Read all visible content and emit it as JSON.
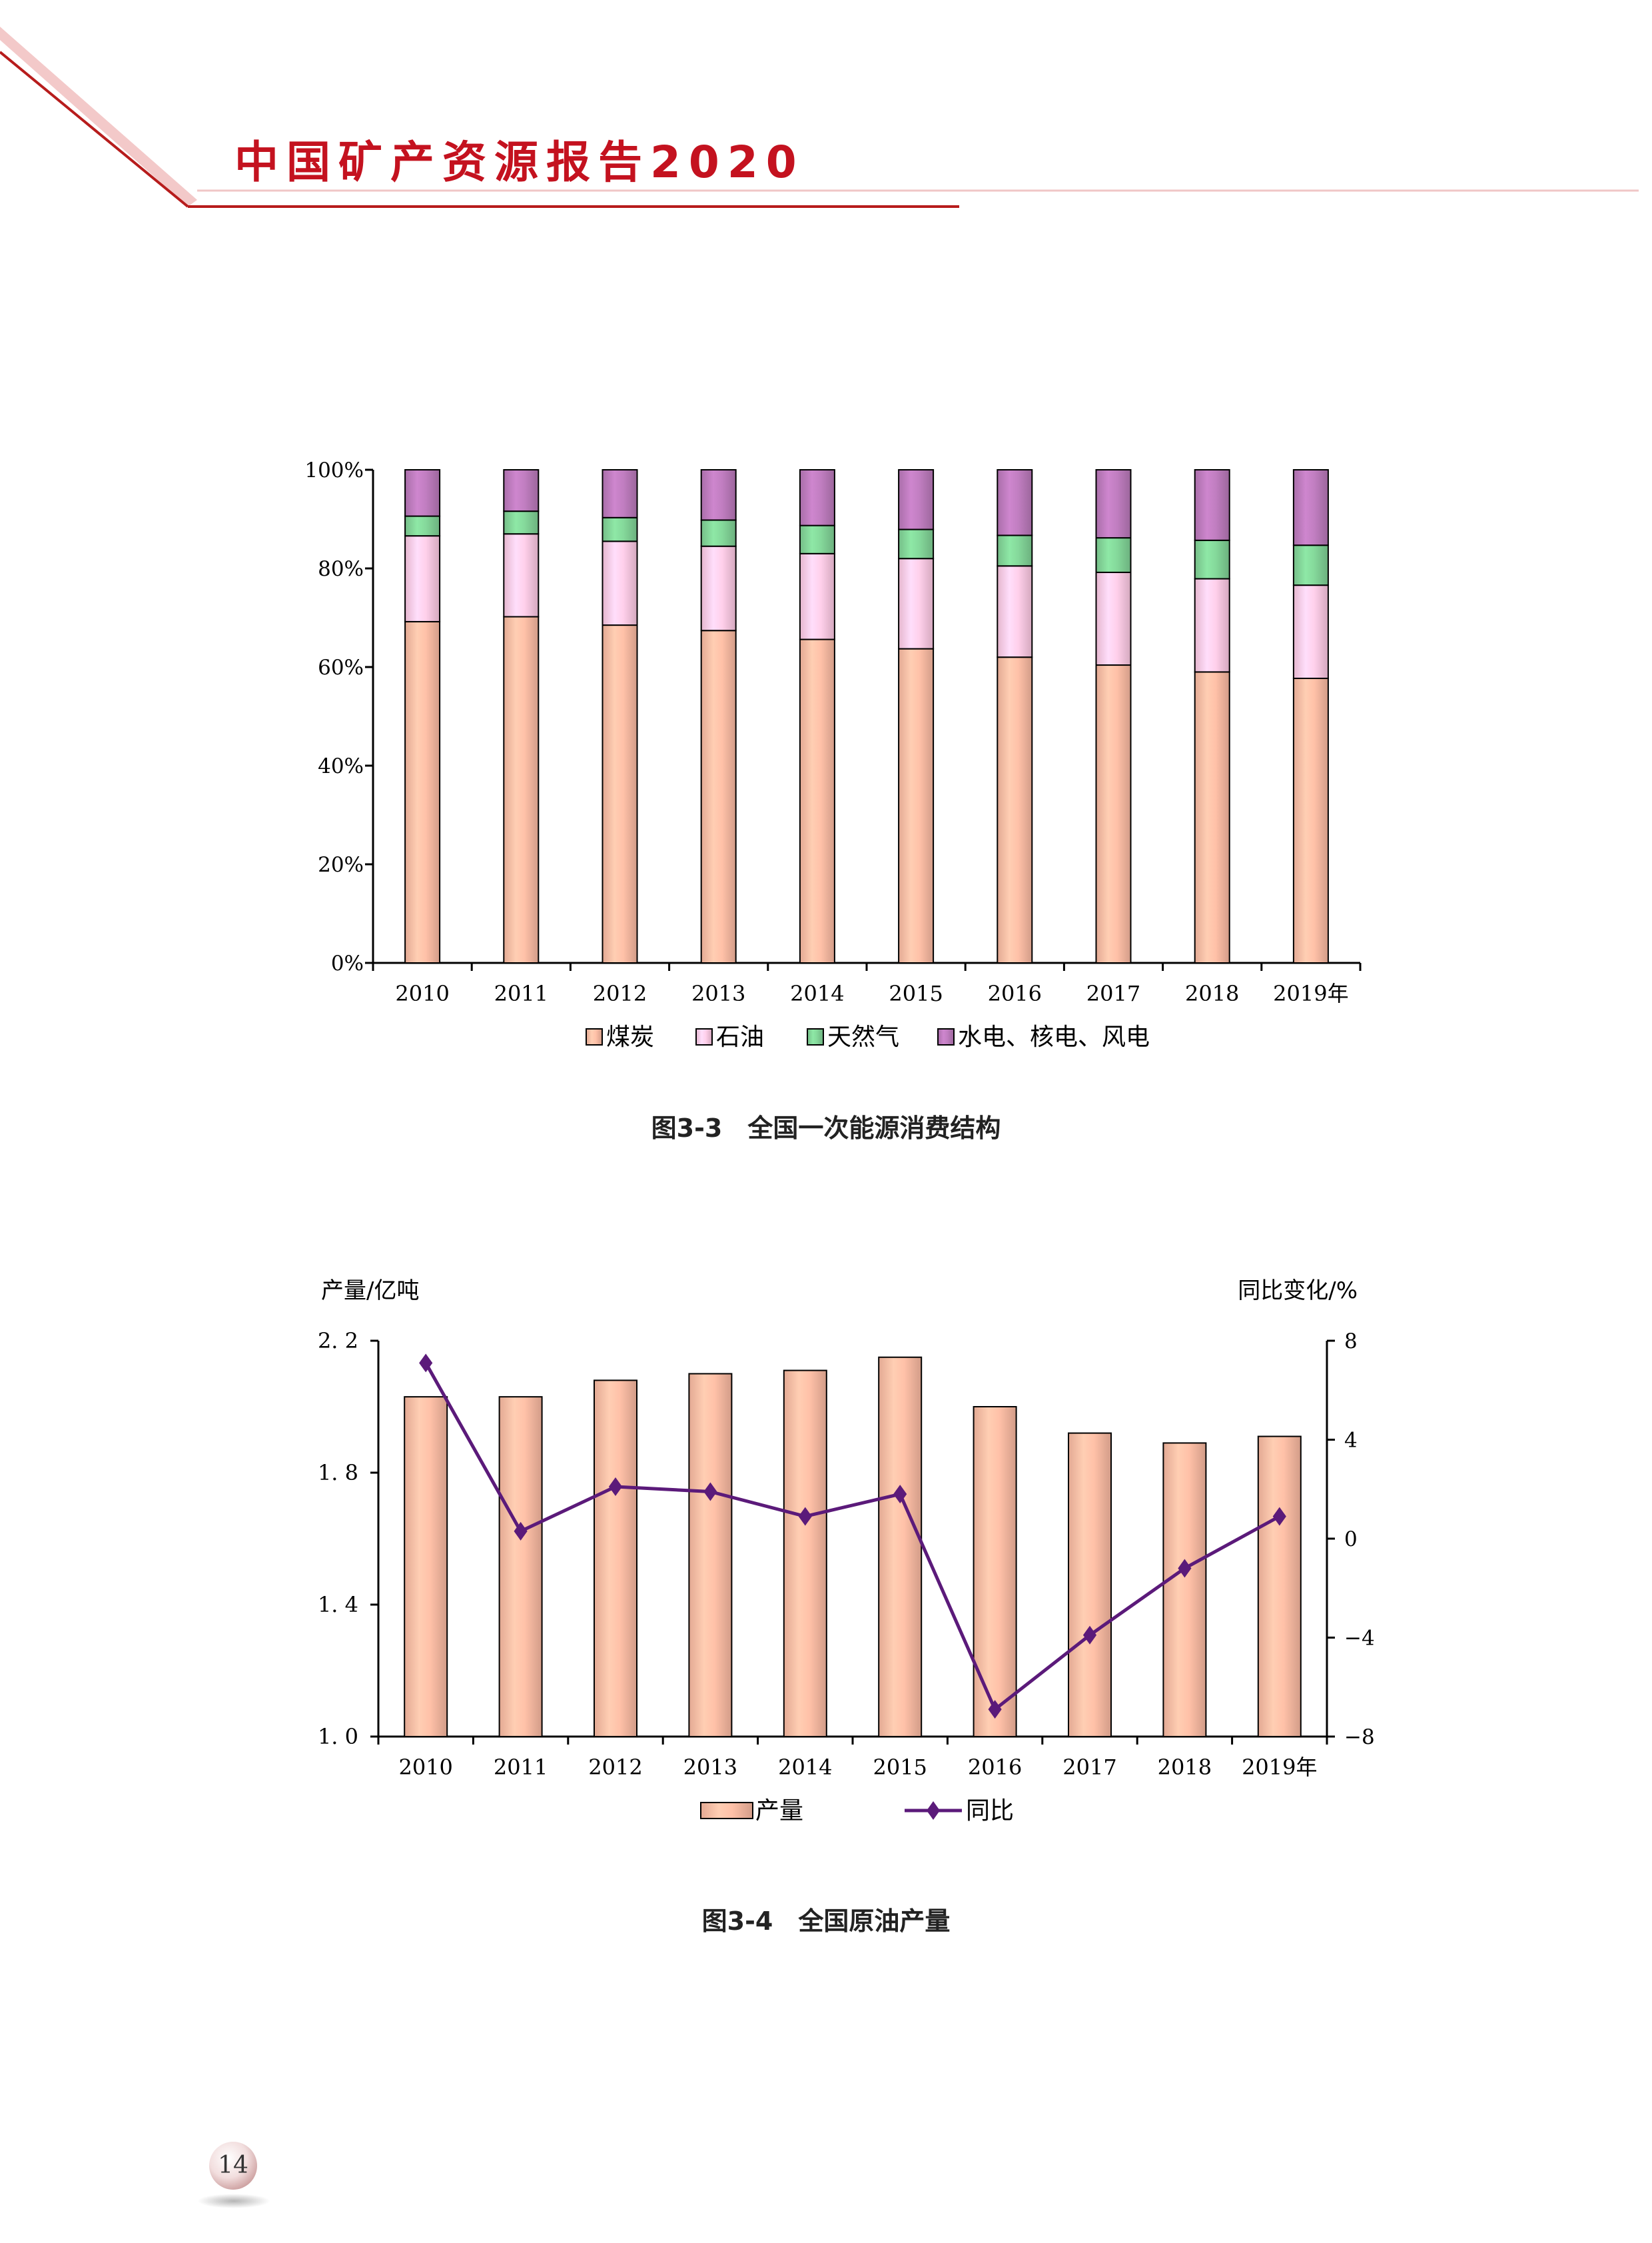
{
  "header": {
    "title": "中国矿产资源报告2020",
    "accent_color": "#c4121f"
  },
  "figure1": {
    "caption": "图3-3　全国一次能源消费结构",
    "chart_data": {
      "type": "bar",
      "stacked": true,
      "categories": [
        "2010",
        "2011",
        "2012",
        "2013",
        "2014",
        "2015",
        "2016",
        "2017",
        "2018",
        "2019年"
      ],
      "series": [
        {
          "name": "煤炭",
          "color": "#f7b8a0",
          "values": [
            69.2,
            70.2,
            68.5,
            67.4,
            65.6,
            63.7,
            62.0,
            60.4,
            59.0,
            57.7
          ]
        },
        {
          "name": "石油",
          "color": "#f9c6e0",
          "values": [
            17.4,
            16.8,
            17.0,
            17.1,
            17.4,
            18.3,
            18.5,
            18.8,
            18.9,
            18.9
          ]
        },
        {
          "name": "天然气",
          "color": "#7fcf94",
          "values": [
            4.0,
            4.6,
            4.8,
            5.3,
            5.7,
            5.9,
            6.2,
            7.0,
            7.8,
            8.1
          ]
        },
        {
          "name": "水电、核电、风电",
          "color": "#b878b8",
          "values": [
            9.4,
            8.4,
            9.7,
            10.2,
            11.3,
            12.1,
            13.3,
            13.8,
            14.3,
            15.3
          ]
        }
      ],
      "yticks": [
        "0%",
        "20%",
        "40%",
        "60%",
        "80%",
        "100%"
      ],
      "ylim": [
        0,
        100
      ],
      "legend_position": "bottom"
    }
  },
  "figure2": {
    "caption": "图3-4　全国原油产量",
    "chart_data": {
      "type": "bar",
      "categories": [
        "2010",
        "2011",
        "2012",
        "2013",
        "2014",
        "2015",
        "2016",
        "2017",
        "2018",
        "2019年"
      ],
      "series": [
        {
          "name": "产量",
          "type": "bar",
          "axis": "left",
          "color": "#f7b8a0",
          "values": [
            2.03,
            2.03,
            2.08,
            2.1,
            2.11,
            2.15,
            2.0,
            1.92,
            1.89,
            1.91
          ]
        },
        {
          "name": "同比",
          "type": "line",
          "axis": "right",
          "color": "#5b1a7a",
          "marker": "diamond",
          "values": [
            7.1,
            0.3,
            2.1,
            1.9,
            0.9,
            1.8,
            -6.9,
            -3.9,
            -1.2,
            0.9
          ]
        }
      ],
      "ylabel_left": "产量/亿吨",
      "ylabel_right": "同比变化/%",
      "yticks_left": [
        "1. 0",
        "1. 4",
        "1. 8",
        "2. 2"
      ],
      "ylim_left": [
        1.0,
        2.2
      ],
      "yticks_right": [
        "−8",
        "−4",
        "0",
        "4",
        "8"
      ],
      "ylim_right": [
        -8,
        8
      ],
      "legend_position": "bottom"
    }
  },
  "page_number": "14"
}
